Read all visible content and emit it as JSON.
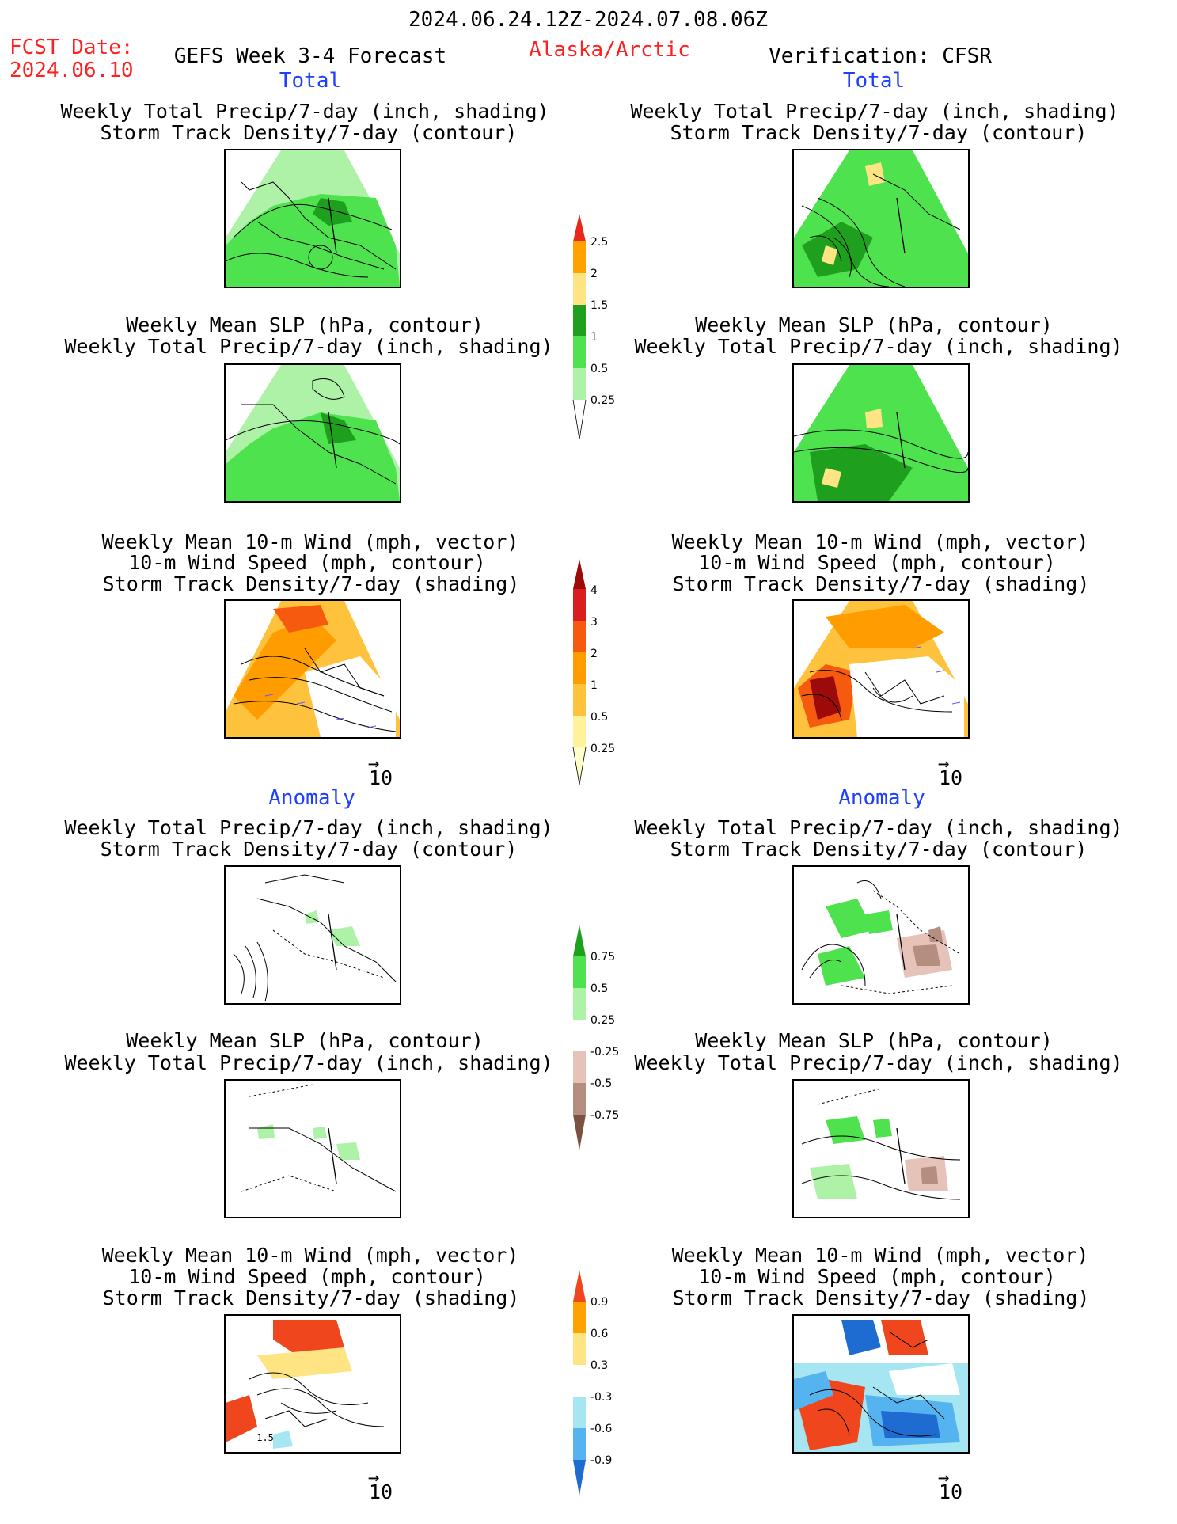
{
  "header": {
    "date_range": "2024.06.24.12Z-2024.07.08.06Z",
    "fcst_label": "FCST Date:",
    "fcst_date": "2024.06.10",
    "forecast_title": "GEFS Week 3-4 Forecast",
    "region": "Alaska/Arctic",
    "verification": "Verification: CFSR"
  },
  "sections": {
    "total": "Total",
    "anomaly": "Anomaly"
  },
  "titles": {
    "precip_storm": [
      "Weekly Total Precip/7-day (inch, shading)",
      "Storm Track Density/7-day (contour)"
    ],
    "slp_precip": [
      "Weekly Mean SLP (hPa, contour)",
      "Weekly Total Precip/7-day (inch, shading)"
    ],
    "wind_storm": [
      "Weekly Mean 10-m Wind (mph, vector)",
      "10-m Wind Speed (mph, contour)",
      "Storm Track Density/7-day (shading)"
    ]
  },
  "vector_ref": "10",
  "colorbars": {
    "precip_total": {
      "labels": [
        "2.5",
        "2",
        "1.5",
        "1",
        "0.5",
        "0.25"
      ],
      "colors": [
        "#e8281c",
        "#ffa200",
        "#ffe484",
        "#1ea01e",
        "#4fe24f",
        "#aef2a8"
      ]
    },
    "storm_total": {
      "labels": [
        "4",
        "3",
        "2",
        "1",
        "0.5",
        "0.25"
      ],
      "colors": [
        "#9c0a0a",
        "#d81e1e",
        "#f55a0f",
        "#ff9c00",
        "#ffc23c",
        "#fff29a",
        "#ffffc8"
      ]
    },
    "precip_anom": {
      "labels": [
        "0.75",
        "0.5",
        "0.25",
        "-0.25",
        "-0.5",
        "-0.75"
      ],
      "colors": [
        "#1ea01e",
        "#4fe24f",
        "#aef2a8",
        "#ffffff",
        "#e6c3b8",
        "#b58e80",
        "#7a5242"
      ]
    },
    "storm_anom": {
      "labels": [
        "0.9",
        "0.6",
        "0.3",
        "-0.3",
        "-0.6",
        "-0.9"
      ],
      "colors": [
        "#f0461e",
        "#ffa200",
        "#ffe484",
        "#ffffff",
        "#a6e6f2",
        "#55b4f0",
        "#1e6cd2"
      ]
    }
  },
  "panel_labels": {
    "anom_wind_min": "-1.5"
  }
}
